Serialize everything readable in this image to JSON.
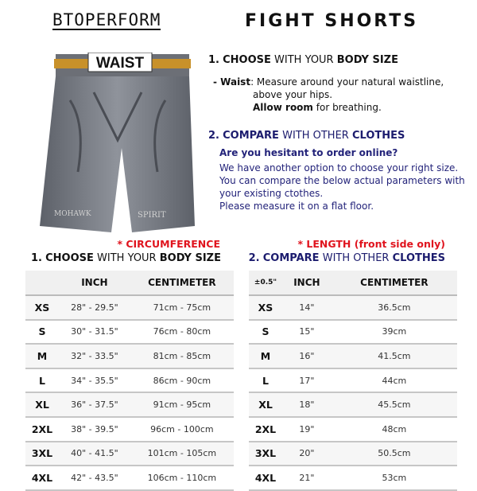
{
  "header": {
    "brand": "BTOPERFORM",
    "title": "FIGHT SHORTS"
  },
  "image": {
    "label": "WAIST",
    "left_print": "MOHAWK",
    "right_print": "SPIRIT"
  },
  "section1": {
    "num": "1.",
    "w1": "CHOOSE",
    "w2": "WITH YOUR",
    "w3": "BODY SIZE",
    "waist_label": "- Waist",
    "waist_text": ": Measure around your natural waistline,",
    "line2": "above your hips.",
    "allow_bold": "Allow room",
    "allow_rest": " for breathing."
  },
  "section2": {
    "num": "2.",
    "w1": "COMPARE",
    "w2": "WITH OTHER",
    "w3": "CLOTHES",
    "question": "Are you hesitant to order online?",
    "lines": [
      "We have another option to choose your right size.",
      "You can compare the below actual parameters with",
      "your existing ctothes.",
      "Please measure it on a flat floor."
    ]
  },
  "table1": {
    "note": "* CIRCUMFERENCE",
    "heading": {
      "num": "1.",
      "w1": "CHOOSE",
      "w2": "WITH YOUR",
      "w3": "BODY SIZE"
    },
    "columns": [
      "",
      "INCH",
      "CENTIMETER"
    ],
    "rows": [
      [
        "XS",
        "28\" - 29.5\"",
        "71cm - 75cm"
      ],
      [
        "S",
        "30\" - 31.5\"",
        "76cm - 80cm"
      ],
      [
        "M",
        "32\" - 33.5\"",
        "81cm - 85cm"
      ],
      [
        "L",
        "34\" - 35.5\"",
        "86cm - 90cm"
      ],
      [
        "XL",
        "36\" - 37.5\"",
        "91cm - 95cm"
      ],
      [
        "2XL",
        "38\" - 39.5\"",
        "96cm - 100cm"
      ],
      [
        "3XL",
        "40\" - 41.5\"",
        "101cm - 105cm"
      ],
      [
        "4XL",
        "42\" - 43.5\"",
        "106cm - 110cm"
      ]
    ]
  },
  "table2": {
    "note": "* LENGTH (front side only)",
    "heading": {
      "num": "2.",
      "w1": "COMPARE",
      "w2": "WITH OTHER",
      "w3": "CLOTHES"
    },
    "columns": [
      "±0.5\"",
      "INCH",
      "CENTIMETER"
    ],
    "rows": [
      [
        "XS",
        "14\"",
        "36.5cm"
      ],
      [
        "S",
        "15\"",
        "39cm"
      ],
      [
        "M",
        "16\"",
        "41.5cm"
      ],
      [
        "L",
        "17\"",
        "44cm"
      ],
      [
        "XL",
        "18\"",
        "45.5cm"
      ],
      [
        "2XL",
        "19\"",
        "48cm"
      ],
      [
        "3XL",
        "20\"",
        "50.5cm"
      ],
      [
        "4XL",
        "21\"",
        "53cm"
      ]
    ]
  },
  "colors": {
    "red": "#e0141e",
    "navy": "#1c1c6e",
    "waistband": "#c8912a"
  }
}
